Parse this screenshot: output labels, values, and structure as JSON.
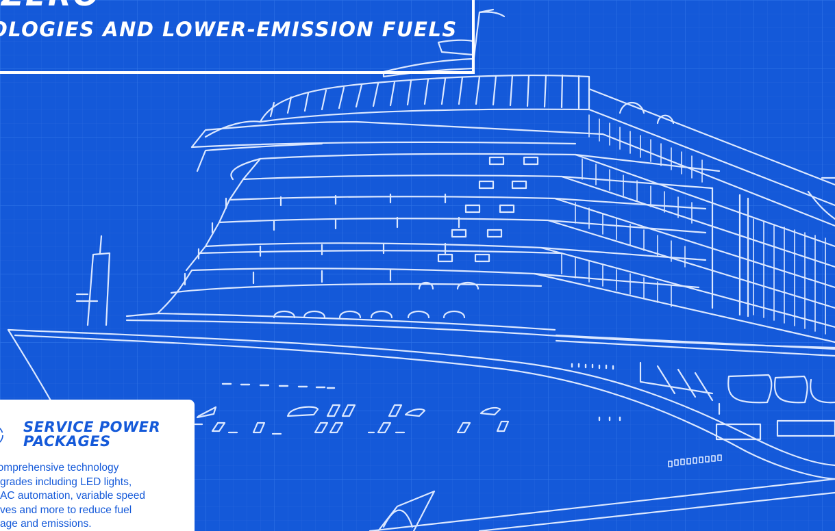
{
  "header": {
    "title_line1": "zero",
    "title_line2": "ologies and lower-emission fuels"
  },
  "card": {
    "icon": "gear-cycle-icon",
    "title": "Service Power Packages",
    "body": "h comprehensive technology\ngrades including LED lights,\nAC automation, variable speed\nves and more to reduce fuel\nage and emissions."
  },
  "colors": {
    "background": "#1459d9",
    "line": "#ffffff",
    "card_text": "#1459d9",
    "card_bg": "#ffffff"
  }
}
